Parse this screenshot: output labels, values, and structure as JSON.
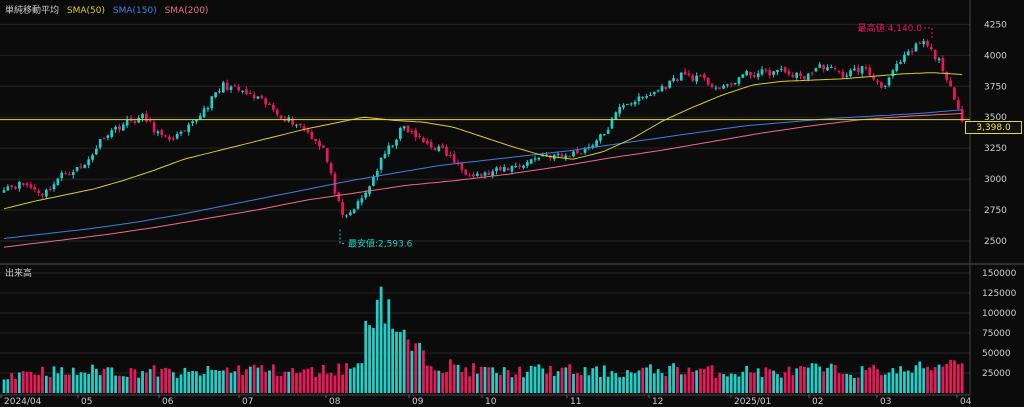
{
  "legend": {
    "title": "単純移動平均",
    "sma50": "SMA(50)",
    "sma150": "SMA(150)",
    "sma200": "SMA(200)"
  },
  "volume_title": "出来高",
  "colors": {
    "background": "#0b0b0b",
    "up": "#1fd0c8",
    "down": "#e8195a",
    "sma50": "#d8cd2a",
    "sma150": "#3f7fe0",
    "sma200": "#f06a8a",
    "ref_line": "#e6d82c",
    "axis_text": "#cfcfcf",
    "grid": "#242424"
  },
  "chart_data": [
    {
      "type": "candlestick",
      "name": "price",
      "y_ticks": [
        2500,
        2750,
        3000,
        3250,
        3500,
        3750,
        4000,
        4250
      ],
      "ylim": [
        2330,
        4350
      ],
      "x_ticks": [
        "2024/04",
        "05",
        "06",
        "07",
        "08",
        "09",
        "10",
        "11",
        "12",
        "2025/01",
        "02",
        "03",
        "04"
      ],
      "period": [
        "2024/04",
        "2025/04"
      ],
      "reference_line": 3480,
      "last_value": 3398.0,
      "last_value_label": "3,398.0",
      "annotations": [
        {
          "label": "最高値:4,140.0",
          "value": 4140.0
        },
        {
          "label": "最安値:2,593.6",
          "value": 2593.6
        }
      ],
      "price_anchors": [
        2940,
        2960,
        2880,
        3050,
        3100,
        3350,
        3450,
        3500,
        3320,
        3360,
        3560,
        3760,
        3700,
        3620,
        3500,
        3420,
        3250,
        2660,
        2850,
        3180,
        3420,
        3300,
        3230,
        3070,
        3030,
        3080,
        3120,
        3200,
        3180,
        3230,
        3350,
        3610,
        3650,
        3740,
        3850,
        3800,
        3720,
        3840,
        3860,
        3870,
        3820,
        3920,
        3840,
        3900,
        3750,
        3960,
        4120,
        3920,
        3450
      ],
      "sma50_anchors": [
        2760,
        2820,
        2870,
        2920,
        2990,
        3070,
        3160,
        3220,
        3280,
        3340,
        3400,
        3450,
        3500,
        3475,
        3460,
        3420,
        3340,
        3260,
        3190,
        3160,
        3220,
        3330,
        3470,
        3580,
        3680,
        3760,
        3790,
        3800,
        3810,
        3830,
        3850,
        3860,
        3845
      ],
      "sma150_anchors": [
        2520,
        2560,
        2600,
        2650,
        2710,
        2780,
        2850,
        2920,
        2990,
        3050,
        3110,
        3150,
        3190,
        3230,
        3280,
        3330,
        3380,
        3430,
        3460,
        3490,
        3510,
        3530,
        3560
      ],
      "sma200_anchors": [
        2450,
        2500,
        2550,
        2610,
        2680,
        2750,
        2830,
        2890,
        2950,
        2990,
        3040,
        3100,
        3170,
        3230,
        3300,
        3370,
        3430,
        3480,
        3510,
        3530
      ]
    },
    {
      "type": "bar",
      "name": "volume",
      "y_ticks": [
        25000,
        50000,
        75000,
        100000,
        125000,
        150000
      ],
      "ylim": [
        0,
        160000
      ],
      "peak_value": 137000,
      "baseline_value": 28000,
      "volume_anchors": [
        24000,
        26000,
        28000,
        25000,
        27000,
        30000,
        26000,
        28000,
        25000,
        24000,
        27000,
        29000,
        31000,
        28000,
        26000,
        27000,
        30000,
        34000,
        137000,
        70000,
        48000,
        36000,
        30000,
        28000,
        26000,
        27000,
        29000,
        28000,
        26000,
        27000,
        25000,
        28000,
        30000,
        29000,
        27000,
        26000,
        28000,
        25000,
        27000,
        30000,
        28000,
        26000,
        29000,
        27000,
        31000,
        36000,
        46000
      ]
    }
  ]
}
